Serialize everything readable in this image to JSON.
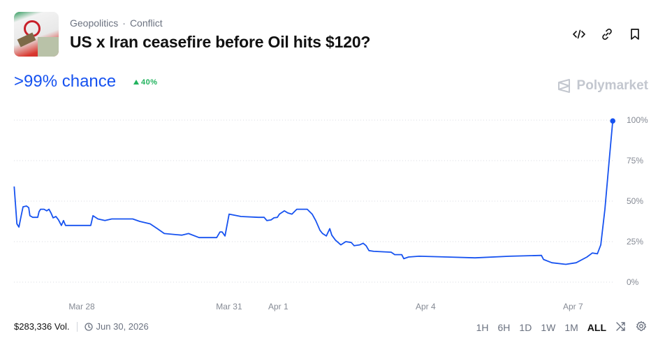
{
  "header": {
    "categories": [
      "Geopolitics",
      "Conflict"
    ],
    "separator": "·",
    "title": "US x Iran ceasefire before Oil hits $120?",
    "icons": [
      "embed-code-icon",
      "link-icon",
      "bookmark-icon"
    ]
  },
  "odds": {
    "chance": ">99% chance",
    "change": "40%",
    "change_direction": "up",
    "color": "#1652f0",
    "change_color": "#22b35e"
  },
  "brand": {
    "name": "Polymarket"
  },
  "chart_data": {
    "type": "line",
    "title": "",
    "xlabel": "",
    "ylabel": "",
    "ylim": [
      0,
      100
    ],
    "y_ticks": [
      {
        "value": 100,
        "label": "100%"
      },
      {
        "value": 75,
        "label": "75%"
      },
      {
        "value": 50,
        "label": "50%"
      },
      {
        "value": 25,
        "label": "25%"
      },
      {
        "value": 0,
        "label": "0%"
      }
    ],
    "x_ticks": [
      {
        "date": "2026-03-28T00:00",
        "label": "Mar 28"
      },
      {
        "date": "2026-03-31T00:00",
        "label": "Mar 31"
      },
      {
        "date": "2026-04-01T00:00",
        "label": "Apr 1"
      },
      {
        "date": "2026-04-04T00:00",
        "label": "Apr 4"
      },
      {
        "date": "2026-04-07T00:00",
        "label": "Apr 7"
      }
    ],
    "grid": "horizontal dotted",
    "line_color": "#1652f0",
    "series": [
      {
        "points": [
          [
            "2026-03-26T15:00",
            59
          ],
          [
            "2026-03-26T16:20",
            36
          ],
          [
            "2026-03-26T17:20",
            34
          ],
          [
            "2026-03-26T18:20",
            40.5
          ],
          [
            "2026-03-26T19:20",
            46.5
          ],
          [
            "2026-03-26T21:00",
            47
          ],
          [
            "2026-03-26T22:05",
            46
          ],
          [
            "2026-03-26T22:40",
            41
          ],
          [
            "2026-03-27T00:05",
            40
          ],
          [
            "2026-03-27T02:30",
            40
          ],
          [
            "2026-03-27T03:10",
            43.5
          ],
          [
            "2026-03-27T03:55",
            45
          ],
          [
            "2026-03-27T05:35",
            45
          ],
          [
            "2026-03-27T06:55",
            44
          ],
          [
            "2026-03-27T08:00",
            45
          ],
          [
            "2026-03-27T09:00",
            42.7
          ],
          [
            "2026-03-27T10:00",
            39.7
          ],
          [
            "2026-03-27T11:25",
            40.5
          ],
          [
            "2026-03-27T12:40",
            38.4
          ],
          [
            "2026-03-27T14:05",
            35
          ],
          [
            "2026-03-27T15:05",
            38
          ],
          [
            "2026-03-27T16:05",
            35
          ],
          [
            "2026-03-27T18:10",
            35
          ],
          [
            "2026-03-28T04:25",
            35
          ],
          [
            "2026-03-28T05:30",
            41
          ],
          [
            "2026-03-28T07:55",
            39
          ],
          [
            "2026-03-28T11:20",
            38
          ],
          [
            "2026-03-28T14:40",
            39
          ],
          [
            "2026-03-28T19:50",
            39
          ],
          [
            "2026-03-29T00:55",
            39
          ],
          [
            "2026-03-29T04:20",
            37.5
          ],
          [
            "2026-03-29T09:25",
            36
          ],
          [
            "2026-03-29T12:55",
            33
          ],
          [
            "2026-03-29T16:20",
            30
          ],
          [
            "2026-03-30T00:50",
            29
          ],
          [
            "2026-03-30T04:10",
            30
          ],
          [
            "2026-03-30T09:20",
            27.5
          ],
          [
            "2026-03-30T17:55",
            27.5
          ],
          [
            "2026-03-30T19:35",
            31
          ],
          [
            "2026-03-30T20:35",
            31
          ],
          [
            "2026-03-30T22:00",
            28.5
          ],
          [
            "2026-03-31T00:00",
            42
          ],
          [
            "2026-03-31T05:50",
            40.5
          ],
          [
            "2026-03-31T14:20",
            40
          ],
          [
            "2026-03-31T17:05",
            40
          ],
          [
            "2026-03-31T18:25",
            38
          ],
          [
            "2026-03-31T20:30",
            38.4
          ],
          [
            "2026-03-31T21:55",
            39.7
          ],
          [
            "2026-03-31T23:35",
            40
          ],
          [
            "2026-04-01T00:35",
            42
          ],
          [
            "2026-04-01T03:00",
            44
          ],
          [
            "2026-04-01T04:40",
            42.7
          ],
          [
            "2026-04-01T06:40",
            42
          ],
          [
            "2026-04-01T09:05",
            45
          ],
          [
            "2026-04-01T14:10",
            45
          ],
          [
            "2026-04-01T16:35",
            42
          ],
          [
            "2026-04-01T18:20",
            38
          ],
          [
            "2026-04-01T20:25",
            32
          ],
          [
            "2026-04-01T21:40",
            30
          ],
          [
            "2026-04-01T23:30",
            28.5
          ],
          [
            "2026-04-02T01:10",
            33
          ],
          [
            "2026-04-02T02:10",
            29
          ],
          [
            "2026-04-02T03:55",
            26
          ],
          [
            "2026-04-02T06:35",
            23
          ],
          [
            "2026-04-02T09:00",
            25
          ],
          [
            "2026-04-02T11:40",
            24.5
          ],
          [
            "2026-04-02T13:05",
            22.5
          ],
          [
            "2026-04-02T15:50",
            23
          ],
          [
            "2026-04-02T17:30",
            24
          ],
          [
            "2026-04-02T18:55",
            22.5
          ],
          [
            "2026-04-02T20:20",
            19.5
          ],
          [
            "2026-04-02T22:40",
            19
          ],
          [
            "2026-04-03T07:10",
            18.5
          ],
          [
            "2026-04-03T08:55",
            17
          ],
          [
            "2026-04-03T12:20",
            17
          ],
          [
            "2026-04-03T13:20",
            14.5
          ],
          [
            "2026-04-03T15:40",
            15.5
          ],
          [
            "2026-04-03T20:50",
            16
          ],
          [
            "2026-04-04T10:30",
            15.5
          ],
          [
            "2026-04-05T00:10",
            15
          ],
          [
            "2026-04-05T17:10",
            16
          ],
          [
            "2026-04-06T08:35",
            16.5
          ],
          [
            "2026-04-06T09:35",
            14
          ],
          [
            "2026-04-06T13:40",
            12
          ],
          [
            "2026-04-06T20:30",
            11
          ],
          [
            "2026-04-07T01:35",
            12
          ],
          [
            "2026-04-07T06:50",
            15.5
          ],
          [
            "2026-04-07T09:30",
            18
          ],
          [
            "2026-04-07T11:55",
            17.5
          ],
          [
            "2026-04-07T13:35",
            23
          ],
          [
            "2026-04-07T15:35",
            45
          ],
          [
            "2026-04-07T17:40",
            75
          ],
          [
            "2026-04-07T19:25",
            99.5
          ]
        ]
      }
    ]
  },
  "footer": {
    "volume": "$283,336 Vol.",
    "end_date": "Jun 30, 2026",
    "ranges": [
      "1H",
      "6H",
      "1D",
      "1W",
      "1M",
      "ALL"
    ],
    "active_range": "ALL"
  }
}
